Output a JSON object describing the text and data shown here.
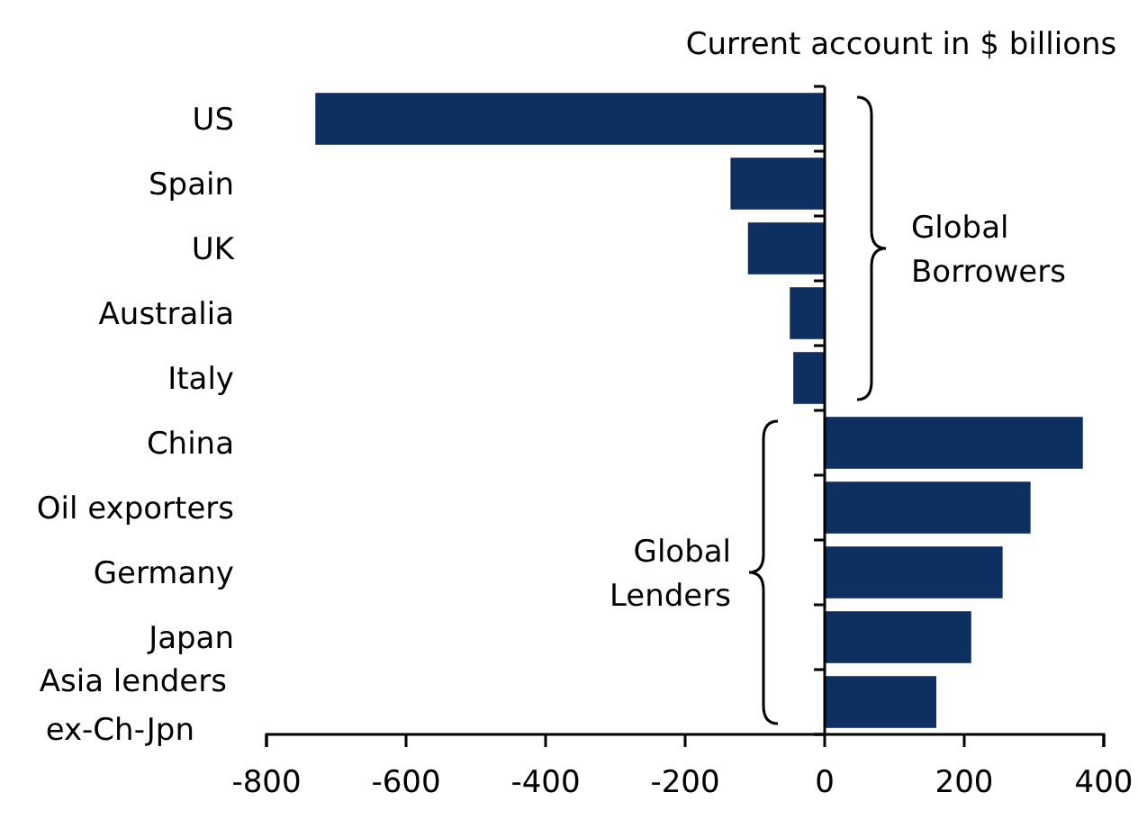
{
  "chart_data": {
    "type": "bar",
    "orientation": "horizontal",
    "title": "Current account in $ billions",
    "categories": [
      "US",
      "Spain",
      "UK",
      "Australia",
      "Italy",
      "China",
      "Oil exporters",
      "Germany",
      "Japan",
      "Asia lenders ex-Ch-Jpn"
    ],
    "values": [
      -730,
      -135,
      -110,
      -50,
      -45,
      370,
      295,
      255,
      210,
      160
    ],
    "color": "#0e3060",
    "xlim": [
      -800,
      400
    ],
    "xticks": [
      -800,
      -600,
      -400,
      -200,
      0,
      200,
      400
    ],
    "annotations": [
      "Global Borrowers",
      "Global Lenders"
    ]
  }
}
